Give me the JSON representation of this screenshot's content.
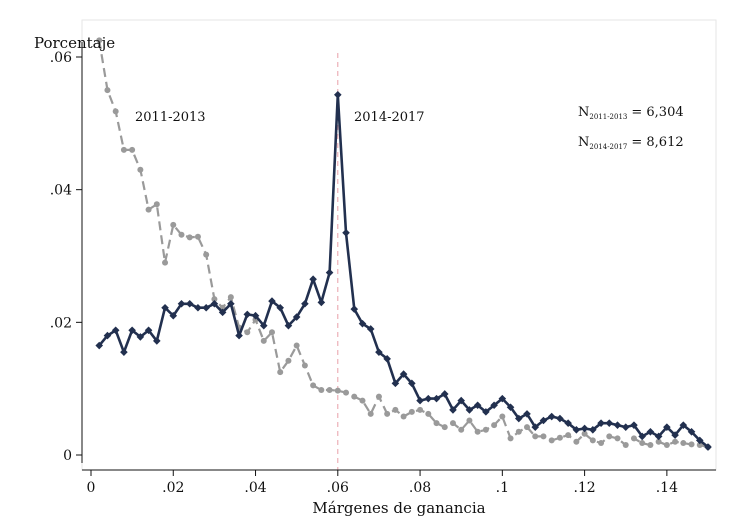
{
  "chart_data": {
    "type": "line",
    "ylabel": "Porcentaje",
    "xlabel": "Márgenes de ganancia",
    "xlim": [
      0,
      0.152
    ],
    "ylim": [
      0,
      0.064
    ],
    "grid": false,
    "x_ticks": [
      0,
      0.02,
      0.04,
      0.06,
      0.08,
      0.1,
      0.12,
      0.14
    ],
    "x_tick_labels": [
      "0",
      ".02",
      ".04",
      ".06",
      ".08",
      ".1",
      ".12",
      ".14"
    ],
    "y_ticks": [
      0,
      0.02,
      0.04,
      0.06
    ],
    "y_tick_labels": [
      "0",
      ".02",
      ".04",
      ".06"
    ],
    "reference_line": {
      "x": 0.06,
      "color": "#e8a0a8"
    },
    "series": [
      {
        "name": "2011-2013",
        "color": "#9a9a9a",
        "marker": "circle",
        "line_style": "dashed",
        "x": [
          0.002,
          0.004,
          0.006,
          0.008,
          0.01,
          0.012,
          0.014,
          0.016,
          0.018,
          0.02,
          0.022,
          0.024,
          0.026,
          0.028,
          0.03,
          0.032,
          0.034,
          0.036,
          0.038,
          0.04,
          0.042,
          0.044,
          0.046,
          0.048,
          0.05,
          0.052,
          0.054,
          0.056,
          0.058,
          0.06,
          0.062,
          0.064,
          0.066,
          0.068,
          0.07,
          0.072,
          0.074,
          0.076,
          0.078,
          0.08,
          0.082,
          0.084,
          0.086,
          0.088,
          0.09,
          0.092,
          0.094,
          0.096,
          0.098,
          0.1,
          0.102,
          0.104,
          0.106,
          0.108,
          0.11,
          0.112,
          0.114,
          0.116,
          0.118,
          0.12,
          0.122,
          0.124,
          0.126,
          0.128,
          0.13,
          0.132,
          0.134,
          0.136,
          0.138,
          0.14,
          0.142,
          0.144,
          0.146,
          0.148,
          0.15
        ],
        "y": [
          0.0625,
          0.055,
          0.0518,
          0.046,
          0.046,
          0.043,
          0.037,
          0.0378,
          0.029,
          0.0347,
          0.0332,
          0.0328,
          0.0329,
          0.0302,
          0.0235,
          0.0222,
          0.0238,
          0.0192,
          0.0185,
          0.0204,
          0.0172,
          0.0185,
          0.0125,
          0.0142,
          0.0165,
          0.0135,
          0.0105,
          0.0098,
          0.0098,
          0.0097,
          0.0094,
          0.0088,
          0.0082,
          0.0062,
          0.0088,
          0.0062,
          0.0068,
          0.0058,
          0.0065,
          0.0068,
          0.0062,
          0.0048,
          0.0042,
          0.0048,
          0.0038,
          0.0052,
          0.0035,
          0.0038,
          0.0045,
          0.0058,
          0.0025,
          0.0035,
          0.0042,
          0.0028,
          0.0028,
          0.0022,
          0.0026,
          0.003,
          0.002,
          0.0032,
          0.0022,
          0.0018,
          0.0028,
          0.0025,
          0.0015,
          0.0025,
          0.0018,
          0.0015,
          0.002,
          0.0015,
          0.002,
          0.0018,
          0.0016,
          0.0015,
          0.0012
        ]
      },
      {
        "name": "2014-2017",
        "color": "#22304f",
        "marker": "diamond",
        "line_style": "solid",
        "x": [
          0.002,
          0.004,
          0.006,
          0.008,
          0.01,
          0.012,
          0.014,
          0.016,
          0.018,
          0.02,
          0.022,
          0.024,
          0.026,
          0.028,
          0.03,
          0.032,
          0.034,
          0.036,
          0.038,
          0.04,
          0.042,
          0.044,
          0.046,
          0.048,
          0.05,
          0.052,
          0.054,
          0.056,
          0.058,
          0.06,
          0.062,
          0.064,
          0.066,
          0.068,
          0.07,
          0.072,
          0.074,
          0.076,
          0.078,
          0.08,
          0.082,
          0.084,
          0.086,
          0.088,
          0.09,
          0.092,
          0.094,
          0.096,
          0.098,
          0.1,
          0.102,
          0.104,
          0.106,
          0.108,
          0.11,
          0.112,
          0.114,
          0.116,
          0.118,
          0.12,
          0.122,
          0.124,
          0.126,
          0.128,
          0.13,
          0.132,
          0.134,
          0.136,
          0.138,
          0.14,
          0.142,
          0.144,
          0.146,
          0.148,
          0.15
        ],
        "y": [
          0.0165,
          0.018,
          0.0188,
          0.0155,
          0.0188,
          0.0178,
          0.0188,
          0.0172,
          0.0222,
          0.021,
          0.0228,
          0.0228,
          0.0222,
          0.0222,
          0.0228,
          0.0215,
          0.0228,
          0.018,
          0.0212,
          0.021,
          0.0195,
          0.0232,
          0.0222,
          0.0195,
          0.0208,
          0.0228,
          0.0265,
          0.023,
          0.0275,
          0.0543,
          0.0335,
          0.022,
          0.0198,
          0.019,
          0.0155,
          0.0145,
          0.0108,
          0.0122,
          0.0108,
          0.0082,
          0.0085,
          0.0085,
          0.0092,
          0.0068,
          0.0082,
          0.0068,
          0.0075,
          0.0065,
          0.0075,
          0.0085,
          0.0072,
          0.0055,
          0.0062,
          0.0042,
          0.0052,
          0.0058,
          0.0055,
          0.0048,
          0.0038,
          0.004,
          0.0038,
          0.0048,
          0.0048,
          0.0045,
          0.0042,
          0.0045,
          0.0028,
          0.0035,
          0.0028,
          0.0042,
          0.003,
          0.0045,
          0.0035,
          0.0022,
          0.0012
        ]
      }
    ],
    "annotations": {
      "label_2011": "2011-2013",
      "label_2014": "2014-2017",
      "n1_prefix": "N",
      "n1_sub": "2011-2013",
      "n1_value": "= 6,304",
      "n2_prefix": "N",
      "n2_sub": "2014-2017",
      "n2_value": "= 8,612"
    }
  }
}
